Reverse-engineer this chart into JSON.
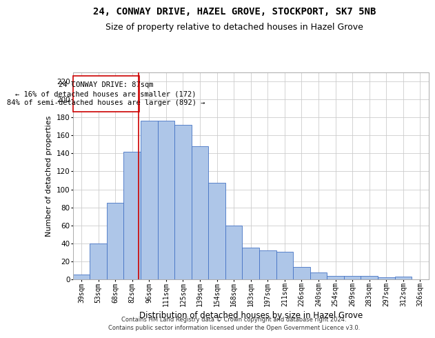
{
  "title": "24, CONWAY DRIVE, HAZEL GROVE, STOCKPORT, SK7 5NB",
  "subtitle": "Size of property relative to detached houses in Hazel Grove",
  "xlabel": "Distribution of detached houses by size in Hazel Grove",
  "ylabel": "Number of detached properties",
  "categories": [
    "39sqm",
    "53sqm",
    "68sqm",
    "82sqm",
    "96sqm",
    "111sqm",
    "125sqm",
    "139sqm",
    "154sqm",
    "168sqm",
    "183sqm",
    "197sqm",
    "211sqm",
    "226sqm",
    "240sqm",
    "254sqm",
    "269sqm",
    "283sqm",
    "297sqm",
    "312sqm",
    "326sqm"
  ],
  "values": [
    5,
    40,
    85,
    142,
    176,
    176,
    172,
    148,
    107,
    60,
    35,
    32,
    31,
    14,
    8,
    4,
    4,
    4,
    2,
    3,
    0
  ],
  "bar_color": "#aec6e8",
  "bar_edge_color": "#4472c4",
  "annotation_text_line1": "24 CONWAY DRIVE: 87sqm",
  "annotation_text_line2": "← 16% of detached houses are smaller (172)",
  "annotation_text_line3": "84% of semi-detached houses are larger (892) →",
  "vline_color": "#cc0000",
  "annotation_box_edge": "#cc0000",
  "background_color": "#ffffff",
  "grid_color": "#cccccc",
  "footer_line1": "Contains HM Land Registry data © Crown copyright and database right 2024.",
  "footer_line2": "Contains public sector information licensed under the Open Government Licence v3.0.",
  "ylim": [
    0,
    230
  ],
  "yticks": [
    0,
    20,
    40,
    60,
    80,
    100,
    120,
    140,
    160,
    180,
    200,
    220
  ],
  "title_fontsize": 10,
  "subtitle_fontsize": 9,
  "axis_label_fontsize": 8,
  "tick_fontsize": 7,
  "annotation_fontsize": 7.5,
  "footer_fontsize": 6
}
